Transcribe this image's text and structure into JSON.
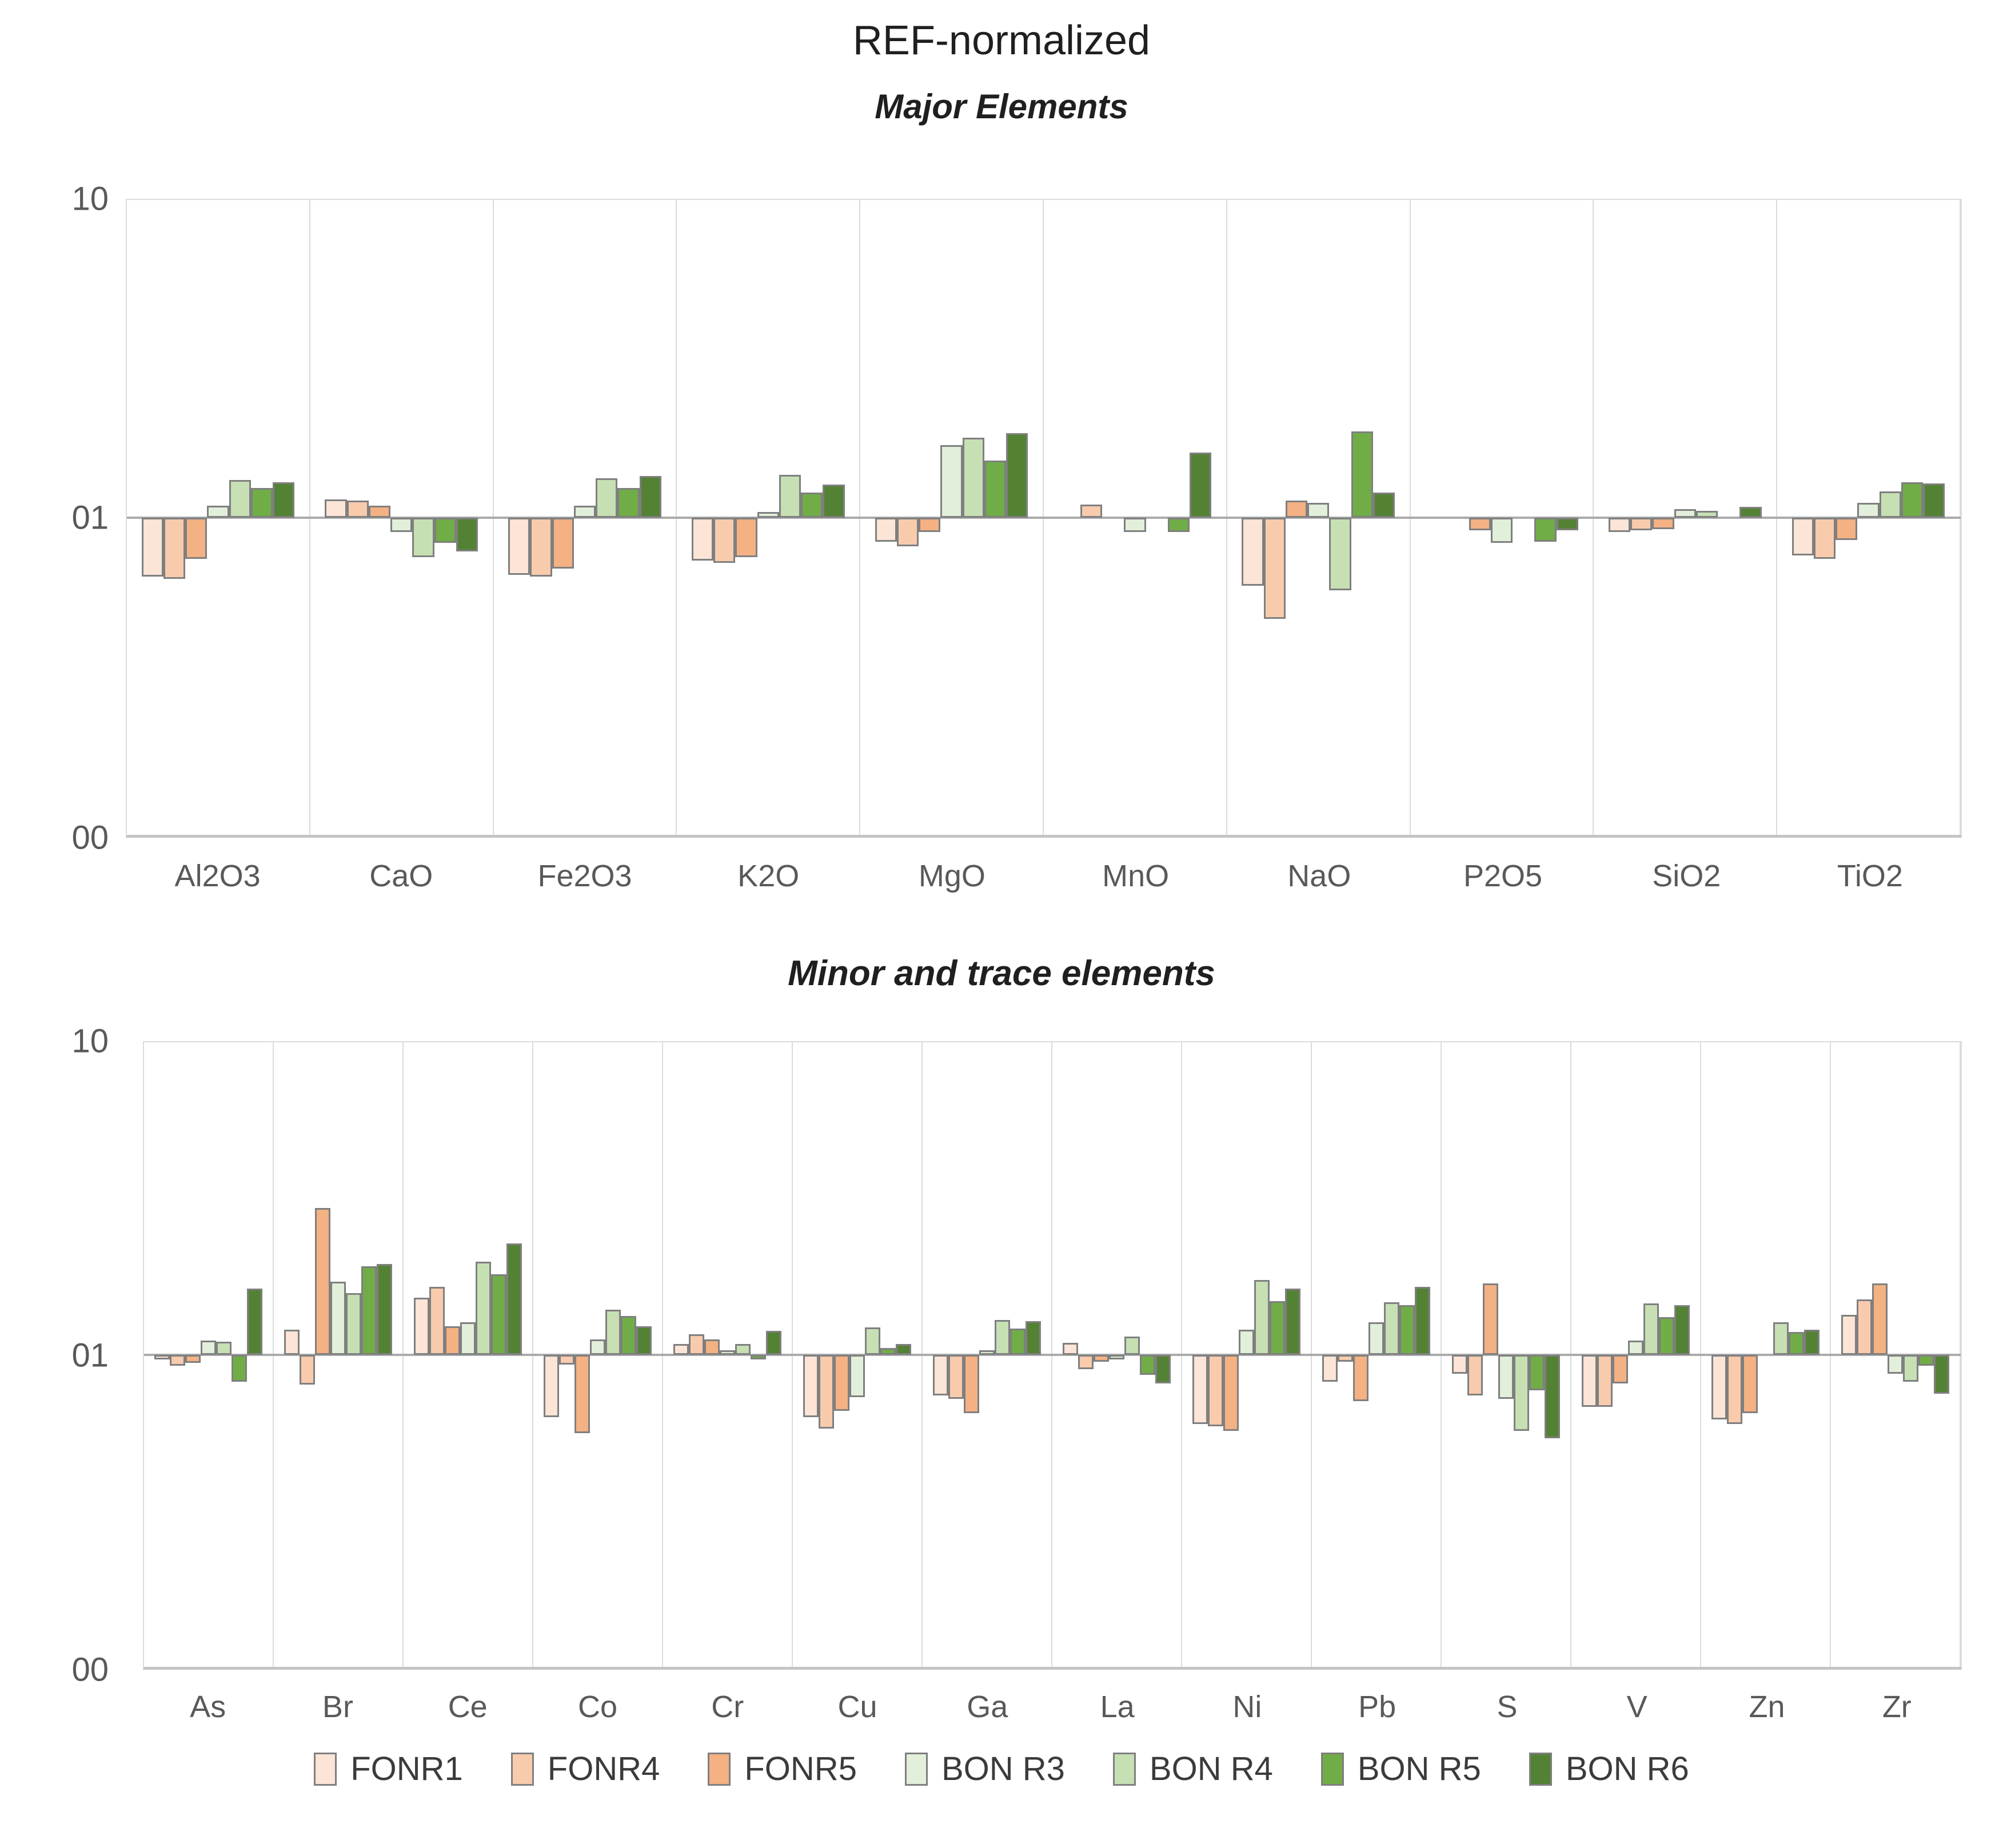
{
  "colors": {
    "background": "#FFFFFF",
    "bar_border": "#7F7F7F",
    "plot_border": "#DCDCDC",
    "baseline": "#ABABAB",
    "axis_bottom": "#C4C4C4",
    "tick_text": "#595959",
    "title_text": "#1F1F1F",
    "legend_text": "#3B3B3B"
  },
  "legend_labels": [
    "FONR1",
    "FONR4",
    "FONR5",
    "BON R3",
    "BON R4",
    "BON R5",
    "BON R6"
  ],
  "chart_data": [
    {
      "id": "major",
      "type": "bar",
      "scale": "log10",
      "title": "REF-normalized",
      "subtitle": "Major Elements",
      "ylim": [
        0.1,
        10
      ],
      "baseline": 1,
      "grid": "vertical-separators",
      "y_tick_labels": [
        "10",
        "01",
        "00"
      ],
      "categories": [
        "Al2O3",
        "CaO",
        "Fe2O3",
        "K2O",
        "MgO",
        "MnO",
        "NaO",
        "P2O5",
        "SiO2",
        "TiO2"
      ],
      "series": [
        {
          "name": "FONR1",
          "color": "#FCE4D6",
          "values": [
            0.65,
            1.14,
            0.66,
            0.73,
            0.84,
            1.0,
            0.61,
            1.0,
            0.9,
            0.76
          ]
        },
        {
          "name": "FONR4",
          "color": "#F8CBAD",
          "values": [
            0.64,
            1.13,
            0.65,
            0.72,
            0.81,
            1.1,
            0.48,
            1.0,
            0.91,
            0.74
          ]
        },
        {
          "name": "FONR5",
          "color": "#F4B183",
          "values": [
            0.74,
            1.09,
            0.69,
            0.75,
            0.9,
            1.0,
            1.13,
            0.91,
            0.92,
            0.85
          ]
        },
        {
          "name": "BON R3",
          "color": "#E2EFDA",
          "values": [
            1.09,
            0.9,
            1.09,
            1.04,
            1.69,
            0.9,
            1.11,
            0.83,
            1.06,
            1.11
          ]
        },
        {
          "name": "BON R4",
          "color": "#C6E0B4",
          "values": [
            1.31,
            0.75,
            1.33,
            1.36,
            1.78,
            1.0,
            0.59,
            1.0,
            1.05,
            1.21
          ]
        },
        {
          "name": "BON R5",
          "color": "#70AD47",
          "values": [
            1.24,
            0.83,
            1.24,
            1.2,
            1.51,
            0.9,
            1.87,
            0.84,
            1.0,
            1.29
          ]
        },
        {
          "name": "BON R6",
          "color": "#548235",
          "values": [
            1.29,
            0.78,
            1.35,
            1.27,
            1.84,
            1.6,
            1.2,
            0.91,
            1.08,
            1.28
          ]
        }
      ]
    },
    {
      "id": "minor",
      "type": "bar",
      "scale": "log10",
      "title": "",
      "subtitle": "Minor and trace elements",
      "ylim": [
        0.1,
        10
      ],
      "baseline": 1,
      "grid": "vertical-separators",
      "legend_position": "bottom",
      "y_tick_labels": [
        "10",
        "01",
        "00"
      ],
      "categories": [
        "As",
        "Br",
        "Ce",
        "Co",
        "Cr",
        "Cu",
        "Ga",
        "La",
        "Ni",
        "Pb",
        "S",
        "V",
        "Zn",
        "Zr"
      ],
      "series": [
        {
          "name": "FONR1",
          "color": "#FCE4D6",
          "values": [
            0.97,
            1.2,
            1.52,
            0.63,
            1.08,
            0.63,
            0.74,
            1.09,
            0.6,
            0.82,
            0.87,
            0.68,
            0.62,
            1.34
          ]
        },
        {
          "name": "FONR4",
          "color": "#F8CBAD",
          "values": [
            0.92,
            0.8,
            1.65,
            0.93,
            1.16,
            0.58,
            0.72,
            0.9,
            0.59,
            0.95,
            0.74,
            0.68,
            0.6,
            1.5
          ]
        },
        {
          "name": "FONR5",
          "color": "#F4B183",
          "values": [
            0.94,
            2.95,
            1.23,
            0.56,
            1.12,
            0.66,
            0.65,
            0.95,
            0.57,
            0.71,
            1.69,
            0.81,
            0.65,
            1.69
          ]
        },
        {
          "name": "BON R3",
          "color": "#E2EFDA",
          "values": [
            1.11,
            1.71,
            1.27,
            1.12,
            1.02,
            0.73,
            1.02,
            0.97,
            1.2,
            1.27,
            0.72,
            1.11,
            1.0,
            0.87
          ]
        },
        {
          "name": "BON R4",
          "color": "#C6E0B4",
          "values": [
            1.1,
            1.57,
            1.98,
            1.39,
            1.08,
            1.22,
            1.29,
            1.14,
            1.73,
            1.47,
            0.57,
            1.46,
            1.27,
            0.82
          ]
        },
        {
          "name": "BON R5",
          "color": "#70AD47",
          "values": [
            0.82,
            1.92,
            1.81,
            1.33,
            0.97,
            1.05,
            1.21,
            0.86,
            1.48,
            1.44,
            0.77,
            1.32,
            1.18,
            0.92
          ]
        },
        {
          "name": "BON R6",
          "color": "#548235",
          "values": [
            1.63,
            1.95,
            2.27,
            1.23,
            1.19,
            1.08,
            1.28,
            0.81,
            1.63,
            1.65,
            0.54,
            1.44,
            1.2,
            0.75
          ]
        }
      ]
    }
  ]
}
